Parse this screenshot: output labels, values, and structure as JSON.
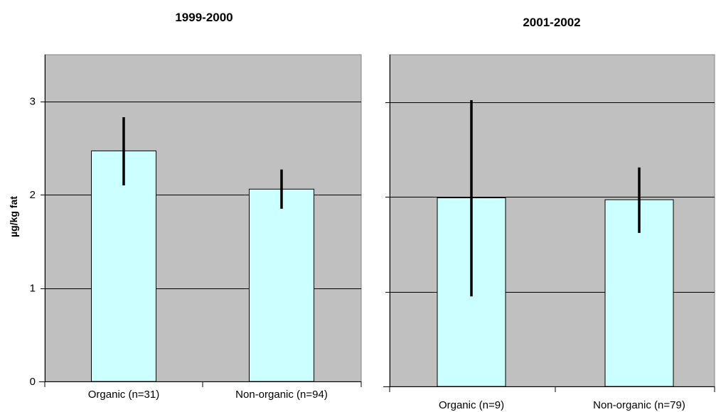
{
  "chart_data": [
    {
      "type": "bar",
      "title": "1999-2000",
      "ylabel": "µg/kg fat",
      "xlabel": "",
      "ylim": [
        0,
        3.5
      ],
      "yticks": [
        0,
        1,
        2,
        3
      ],
      "grid": true,
      "categories": [
        "Organic (n=31)",
        "Non-organic (n=94)"
      ],
      "values": [
        2.47,
        2.06
      ],
      "error_low": [
        2.1,
        1.85
      ],
      "error_high": [
        2.83,
        2.27
      ],
      "colors": {
        "bar": "#ccffff",
        "plot_bg": "#c0c0c0",
        "error_bar": "#000000"
      }
    },
    {
      "type": "bar",
      "title": "2001-2002",
      "ylabel": "",
      "xlabel": "",
      "ylim": [
        0,
        3.5
      ],
      "yticks": [
        0,
        1,
        2,
        3
      ],
      "grid": true,
      "categories": [
        "Organic (n=9)",
        "Non-organic (n=79)"
      ],
      "values": [
        1.99,
        1.97
      ],
      "error_low": [
        0.95,
        1.62
      ],
      "error_high": [
        3.02,
        2.31
      ],
      "colors": {
        "bar": "#ccffff",
        "plot_bg": "#c0c0c0",
        "error_bar": "#000000"
      }
    }
  ]
}
